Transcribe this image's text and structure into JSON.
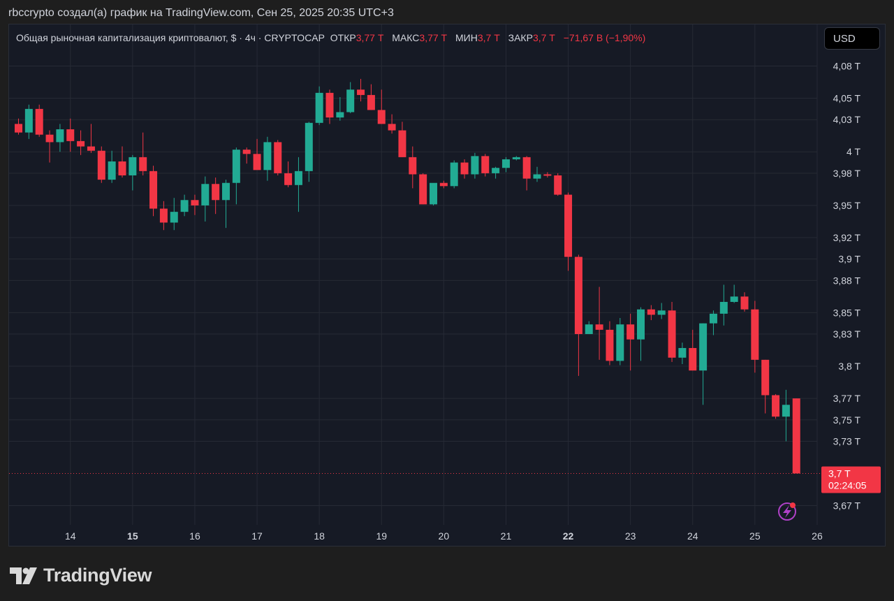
{
  "header": {
    "caption": "rbccrypto создал(а) график на TradingView.com, Сен 25, 2025 20:35 UTC+3"
  },
  "legend": {
    "title": "Общая рыночная капитализация криптовалют, $ · 4ч · CRYPTOCAP",
    "open_label": "ОТКР",
    "open_value": "3,77 T",
    "high_label": "МАКС",
    "high_value": "3,77 T",
    "low_label": "МИН",
    "low_value": "3,7 T",
    "close_label": "ЗАКР",
    "close_value": "3,7 T",
    "change": "−71,67 B (−1,90%)"
  },
  "currency_button": {
    "label": "USD"
  },
  "brand": {
    "name": "TradingView"
  },
  "colors": {
    "up": "#22ab94",
    "down": "#f23645",
    "background": "#161a25",
    "grid": "#262a35",
    "text": "#d1d4dc"
  },
  "chart_data": {
    "type": "candlestick",
    "interval": "4h",
    "unit": "T",
    "grid": true,
    "ylim": [
      3.655,
      4.1
    ],
    "y_ticks": [
      {
        "value": 4.08,
        "label": "4,08 T"
      },
      {
        "value": 4.05,
        "label": "4,05 T"
      },
      {
        "value": 4.03,
        "label": "4,03 T"
      },
      {
        "value": 4.0,
        "label": "4 T"
      },
      {
        "value": 3.98,
        "label": "3,98 T"
      },
      {
        "value": 3.95,
        "label": "3,95 T"
      },
      {
        "value": 3.92,
        "label": "3,92 T"
      },
      {
        "value": 3.9,
        "label": "3,9 T"
      },
      {
        "value": 3.88,
        "label": "3,88 T"
      },
      {
        "value": 3.85,
        "label": "3,85 T"
      },
      {
        "value": 3.83,
        "label": "3,83 T"
      },
      {
        "value": 3.8,
        "label": "3,8 T"
      },
      {
        "value": 3.77,
        "label": "3,77 T"
      },
      {
        "value": 3.75,
        "label": "3,75 T"
      },
      {
        "value": 3.73,
        "label": "3,73 T"
      },
      {
        "value": 3.67,
        "label": "3,67 T"
      }
    ],
    "x_ticks": [
      {
        "index": 5,
        "label": "14",
        "bold": false
      },
      {
        "index": 11,
        "label": "15",
        "bold": true
      },
      {
        "index": 17,
        "label": "16",
        "bold": false
      },
      {
        "index": 23,
        "label": "17",
        "bold": false
      },
      {
        "index": 29,
        "label": "18",
        "bold": false
      },
      {
        "index": 35,
        "label": "19",
        "bold": false
      },
      {
        "index": 41,
        "label": "20",
        "bold": false
      },
      {
        "index": 47,
        "label": "21",
        "bold": false
      },
      {
        "index": 53,
        "label": "22",
        "bold": true
      },
      {
        "index": 59,
        "label": "23",
        "bold": false
      },
      {
        "index": 65,
        "label": "24",
        "bold": false
      },
      {
        "index": 71,
        "label": "25",
        "bold": false
      },
      {
        "index": 77,
        "label": "26",
        "bold": false
      }
    ],
    "price_marker": {
      "value": 3.7,
      "label": "3,7 T",
      "countdown": "02:24:05"
    },
    "candles": [
      {
        "o": 4.026,
        "h": 4.031,
        "l": 4.016,
        "c": 4.018
      },
      {
        "o": 4.018,
        "h": 4.044,
        "l": 4.012,
        "c": 4.04
      },
      {
        "o": 4.04,
        "h": 4.044,
        "l": 4.014,
        "c": 4.016
      },
      {
        "o": 4.016,
        "h": 4.02,
        "l": 3.99,
        "c": 4.009
      },
      {
        "o": 4.009,
        "h": 4.026,
        "l": 4.0,
        "c": 4.021
      },
      {
        "o": 4.021,
        "h": 4.031,
        "l": 4.0,
        "c": 4.01
      },
      {
        "o": 4.01,
        "h": 4.02,
        "l": 3.997,
        "c": 4.005
      },
      {
        "o": 4.005,
        "h": 4.026,
        "l": 3.999,
        "c": 4.001
      },
      {
        "o": 4.001,
        "h": 4.005,
        "l": 3.971,
        "c": 3.974
      },
      {
        "o": 3.974,
        "h": 4.001,
        "l": 3.971,
        "c": 3.991
      },
      {
        "o": 3.991,
        "h": 4.005,
        "l": 3.976,
        "c": 3.978
      },
      {
        "o": 3.978,
        "h": 3.997,
        "l": 3.964,
        "c": 3.995
      },
      {
        "o": 3.995,
        "h": 4.018,
        "l": 3.978,
        "c": 3.982
      },
      {
        "o": 3.982,
        "h": 3.987,
        "l": 3.94,
        "c": 3.947
      },
      {
        "o": 3.947,
        "h": 3.954,
        "l": 3.927,
        "c": 3.934
      },
      {
        "o": 3.934,
        "h": 3.957,
        "l": 3.927,
        "c": 3.944
      },
      {
        "o": 3.944,
        "h": 3.96,
        "l": 3.94,
        "c": 3.955
      },
      {
        "o": 3.955,
        "h": 3.96,
        "l": 3.941,
        "c": 3.95
      },
      {
        "o": 3.95,
        "h": 3.977,
        "l": 3.935,
        "c": 3.97
      },
      {
        "o": 3.97,
        "h": 3.976,
        "l": 3.942,
        "c": 3.955
      },
      {
        "o": 3.955,
        "h": 3.974,
        "l": 3.929,
        "c": 3.971
      },
      {
        "o": 3.971,
        "h": 4.004,
        "l": 3.951,
        "c": 4.002
      },
      {
        "o": 4.002,
        "h": 4.004,
        "l": 3.989,
        "c": 3.998
      },
      {
        "o": 3.998,
        "h": 4.012,
        "l": 3.985,
        "c": 3.983
      },
      {
        "o": 3.983,
        "h": 4.014,
        "l": 3.973,
        "c": 4.009
      },
      {
        "o": 4.009,
        "h": 4.011,
        "l": 3.978,
        "c": 3.98
      },
      {
        "o": 3.98,
        "h": 3.991,
        "l": 3.967,
        "c": 3.969
      },
      {
        "o": 3.969,
        "h": 3.995,
        "l": 3.944,
        "c": 3.982
      },
      {
        "o": 3.982,
        "h": 4.028,
        "l": 3.972,
        "c": 4.027
      },
      {
        "o": 4.027,
        "h": 4.061,
        "l": 4.025,
        "c": 4.055
      },
      {
        "o": 4.055,
        "h": 4.058,
        "l": 4.026,
        "c": 4.032
      },
      {
        "o": 4.032,
        "h": 4.051,
        "l": 4.029,
        "c": 4.037
      },
      {
        "o": 4.037,
        "h": 4.065,
        "l": 4.036,
        "c": 4.058
      },
      {
        "o": 4.058,
        "h": 4.068,
        "l": 4.047,
        "c": 4.053
      },
      {
        "o": 4.053,
        "h": 4.063,
        "l": 4.039,
        "c": 4.039
      },
      {
        "o": 4.039,
        "h": 4.058,
        "l": 4.026,
        "c": 4.026
      },
      {
        "o": 4.026,
        "h": 4.035,
        "l": 4.017,
        "c": 4.02
      },
      {
        "o": 4.02,
        "h": 4.028,
        "l": 3.995,
        "c": 3.995
      },
      {
        "o": 3.995,
        "h": 4.005,
        "l": 3.966,
        "c": 3.979
      },
      {
        "o": 3.979,
        "h": 3.98,
        "l": 3.951,
        "c": 3.951
      },
      {
        "o": 3.951,
        "h": 3.97,
        "l": 3.95,
        "c": 3.971
      },
      {
        "o": 3.971,
        "h": 3.973,
        "l": 3.966,
        "c": 3.968
      },
      {
        "o": 3.968,
        "h": 3.992,
        "l": 3.966,
        "c": 3.99
      },
      {
        "o": 3.99,
        "h": 3.993,
        "l": 3.975,
        "c": 3.979
      },
      {
        "o": 3.979,
        "h": 3.999,
        "l": 3.975,
        "c": 3.996
      },
      {
        "o": 3.996,
        "h": 3.998,
        "l": 3.977,
        "c": 3.98
      },
      {
        "o": 3.98,
        "h": 3.986,
        "l": 3.975,
        "c": 3.985
      },
      {
        "o": 3.985,
        "h": 3.995,
        "l": 3.981,
        "c": 3.993
      },
      {
        "o": 3.993,
        "h": 3.996,
        "l": 3.992,
        "c": 3.995
      },
      {
        "o": 3.995,
        "h": 3.996,
        "l": 3.964,
        "c": 3.975
      },
      {
        "o": 3.975,
        "h": 3.986,
        "l": 3.972,
        "c": 3.979
      },
      {
        "o": 3.979,
        "h": 3.981,
        "l": 3.976,
        "c": 3.978
      },
      {
        "o": 3.978,
        "h": 3.98,
        "l": 3.959,
        "c": 3.96
      },
      {
        "o": 3.96,
        "h": 3.962,
        "l": 3.889,
        "c": 3.902
      },
      {
        "o": 3.902,
        "h": 3.904,
        "l": 3.791,
        "c": 3.83
      },
      {
        "o": 3.83,
        "h": 3.842,
        "l": 3.83,
        "c": 3.839
      },
      {
        "o": 3.839,
        "h": 3.874,
        "l": 3.806,
        "c": 3.834
      },
      {
        "o": 3.834,
        "h": 3.842,
        "l": 3.801,
        "c": 3.805
      },
      {
        "o": 3.805,
        "h": 3.845,
        "l": 3.801,
        "c": 3.839
      },
      {
        "o": 3.839,
        "h": 3.849,
        "l": 3.796,
        "c": 3.825
      },
      {
        "o": 3.825,
        "h": 3.855,
        "l": 3.805,
        "c": 3.853
      },
      {
        "o": 3.853,
        "h": 3.857,
        "l": 3.843,
        "c": 3.848
      },
      {
        "o": 3.848,
        "h": 3.859,
        "l": 3.844,
        "c": 3.852
      },
      {
        "o": 3.852,
        "h": 3.86,
        "l": 3.804,
        "c": 3.808
      },
      {
        "o": 3.808,
        "h": 3.822,
        "l": 3.802,
        "c": 3.817
      },
      {
        "o": 3.817,
        "h": 3.834,
        "l": 3.796,
        "c": 3.796
      },
      {
        "o": 3.796,
        "h": 3.84,
        "l": 3.764,
        "c": 3.84
      },
      {
        "o": 3.84,
        "h": 3.852,
        "l": 3.829,
        "c": 3.849
      },
      {
        "o": 3.849,
        "h": 3.876,
        "l": 3.838,
        "c": 3.86
      },
      {
        "o": 3.86,
        "h": 3.876,
        "l": 3.859,
        "c": 3.865
      },
      {
        "o": 3.865,
        "h": 3.869,
        "l": 3.851,
        "c": 3.853
      },
      {
        "o": 3.853,
        "h": 3.861,
        "l": 3.794,
        "c": 3.806
      },
      {
        "o": 3.806,
        "h": 3.806,
        "l": 3.756,
        "c": 3.773
      },
      {
        "o": 3.773,
        "h": 3.774,
        "l": 3.751,
        "c": 3.753
      },
      {
        "o": 3.753,
        "h": 3.778,
        "l": 3.73,
        "c": 3.764
      },
      {
        "o": 3.77,
        "h": 3.77,
        "l": 3.7,
        "c": 3.7
      }
    ]
  }
}
